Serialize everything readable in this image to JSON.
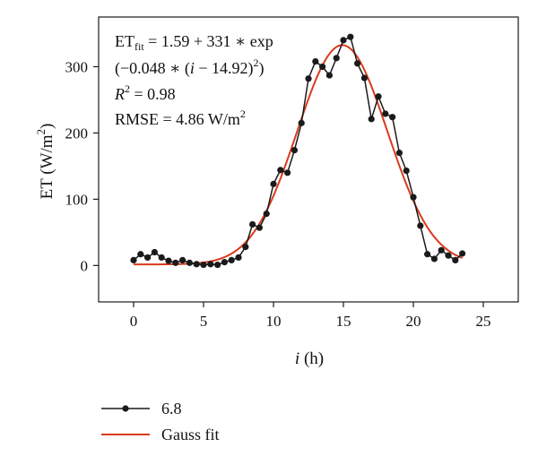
{
  "chart_data": {
    "type": "line",
    "xlabel_var": "i",
    "xlabel_unit": " (h)",
    "ylabel": "ET (W/m",
    "ylabel_sup": "2",
    "ylabel_close": ")",
    "xlim": [
      -2.5,
      27.5
    ],
    "ylim": [
      -55,
      375
    ],
    "xticks": [
      0,
      5,
      10,
      15,
      20,
      25
    ],
    "yticks": [
      0,
      100,
      200,
      300
    ],
    "annotations": {
      "line1_prefix": "ET",
      "line1_sub": "fit",
      "line1_rest": " = 1.59 + 331 ∗ exp",
      "line2_a": "(−0.048 ∗ (",
      "line2_i": "i",
      "line2_b": " − 14.92)",
      "line2_sup": "2",
      "line2_c": ")",
      "line3_r": "R",
      "line3_sup": "2",
      "line3_rest": " = 0.98",
      "line4_prefix": "RMSE = 4.86 W/m",
      "line4_sup": "2"
    },
    "series": [
      {
        "name": "6.8",
        "color": "#1a1a1a",
        "marker": "circle",
        "x": [
          0,
          0.5,
          1,
          1.5,
          2,
          2.5,
          3,
          3.5,
          4,
          4.5,
          5,
          5.5,
          6,
          6.5,
          7,
          7.5,
          8,
          8.5,
          9,
          9.5,
          10,
          10.5,
          11,
          11.5,
          12,
          12.5,
          13,
          13.5,
          14,
          14.5,
          15,
          15.5,
          16,
          16.5,
          17,
          17.5,
          18,
          18.5,
          19,
          19.5,
          20,
          20.5,
          21,
          21.5,
          22,
          22.5,
          23,
          23.5
        ],
        "y": [
          8,
          17,
          12,
          20,
          12,
          7,
          4,
          8,
          4,
          2,
          1,
          2,
          1,
          5,
          8,
          12,
          28,
          62,
          57,
          78,
          123,
          144,
          140,
          174,
          215,
          282,
          308,
          300,
          287,
          313,
          340,
          345,
          305,
          283,
          221,
          255,
          229,
          224,
          170,
          143,
          103,
          60,
          17,
          10,
          23,
          15,
          8,
          18
        ]
      },
      {
        "name": "Gauss fit",
        "color": "#d93a1c",
        "type": "gauss",
        "params": {
          "a": 1.59,
          "b": 331,
          "c": 0.048,
          "mu": 14.92
        },
        "x_range": [
          0,
          23.5
        ]
      }
    ],
    "legend_position": "bottom-left"
  }
}
